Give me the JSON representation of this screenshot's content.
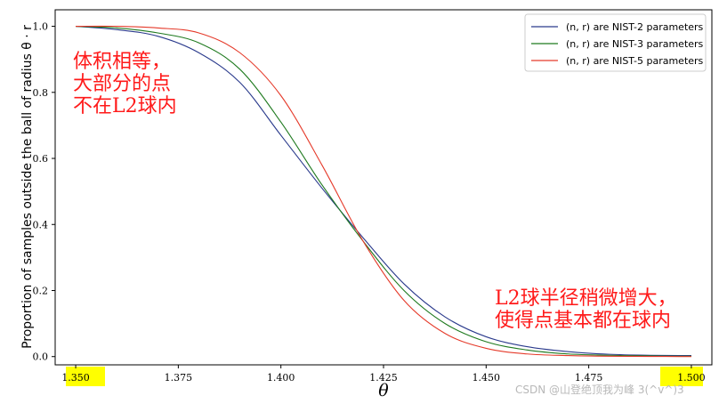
{
  "chart_data": {
    "type": "line",
    "title": "",
    "xlabel": "θ",
    "ylabel": "Proportion of samples outside the ball of radius θ · r",
    "xlim": [
      1.345,
      1.505
    ],
    "ylim": [
      -0.025,
      1.05
    ],
    "grid": false,
    "legend_position": "top-right",
    "x_ticks": [
      "1.350",
      "1.375",
      "1.400",
      "1.425",
      "1.450",
      "1.475",
      "1.500"
    ],
    "y_ticks": [
      "0.0",
      "0.2",
      "0.4",
      "0.6",
      "0.8",
      "1.0"
    ],
    "highlighted_ticks": [
      "1.350",
      "1.500"
    ],
    "highlight_color": "#ffff00",
    "x": [
      1.35,
      1.36,
      1.37,
      1.38,
      1.39,
      1.4,
      1.41,
      1.42,
      1.43,
      1.44,
      1.45,
      1.46,
      1.47,
      1.48,
      1.49,
      1.5
    ],
    "series": [
      {
        "name": "(n, r) are NIST-2 parameters",
        "color": "#2a3a8c",
        "values": [
          1.0,
          0.99,
          0.97,
          0.92,
          0.83,
          0.67,
          0.51,
          0.36,
          0.22,
          0.12,
          0.06,
          0.03,
          0.015,
          0.007,
          0.004,
          0.003
        ]
      },
      {
        "name": "(n, r) are NIST-3 parameters",
        "color": "#1f7a1f",
        "values": [
          1.0,
          0.995,
          0.98,
          0.95,
          0.87,
          0.71,
          0.52,
          0.35,
          0.2,
          0.1,
          0.045,
          0.02,
          0.008,
          0.004,
          0.002,
          0.001
        ]
      },
      {
        "name": "(n, r) are NIST-5 parameters",
        "color": "#e53a2a",
        "values": [
          1.0,
          1.0,
          0.995,
          0.98,
          0.92,
          0.79,
          0.58,
          0.35,
          0.17,
          0.07,
          0.025,
          0.008,
          0.003,
          0.001,
          0.0005,
          0.0
        ]
      }
    ],
    "annotations": [
      {
        "lines": [
          "体积相等，",
          "大部分的点",
          "不在L2球内"
        ],
        "color": "#ff1a1a"
      },
      {
        "lines": [
          "L2球半径稍微增大，",
          "使得点基本都在球内"
        ],
        "color": "#ff1a1a"
      }
    ]
  },
  "watermark": "CSDN @山登绝顶我为峰 3(^v^)3"
}
